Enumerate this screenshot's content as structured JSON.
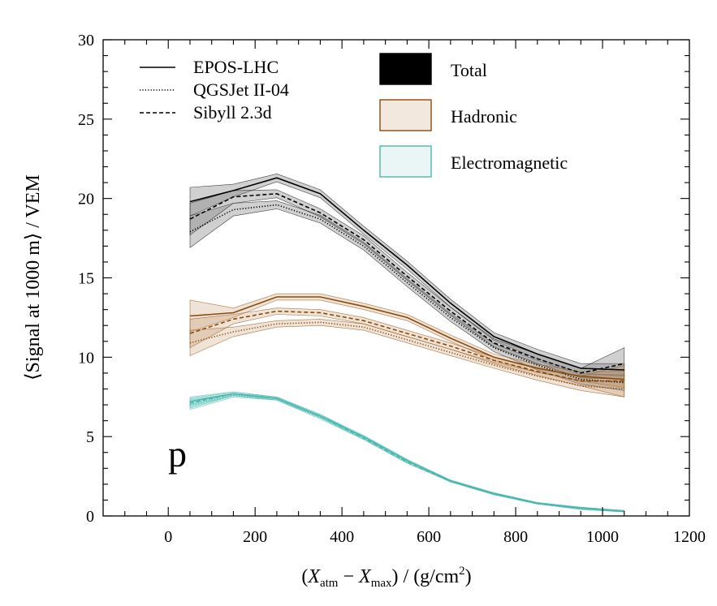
{
  "chart_data": {
    "type": "line",
    "panel_label": "p",
    "xlabel": {
      "prefix": "(",
      "x1": "X",
      "sub1": "atm",
      "minus": " − ",
      "x2": "X",
      "sub2": "max",
      "suffix": ") / (g/cm",
      "sup": "2",
      "end": ")"
    },
    "ylabel": "⟨Signal at 1000 m⟩ / VEM",
    "xlim": [
      -150,
      1200
    ],
    "ylim": [
      0,
      30
    ],
    "xticks": [
      0,
      200,
      400,
      600,
      800,
      1000,
      1200
    ],
    "yticks": [
      0,
      5,
      10,
      15,
      20,
      25,
      30
    ],
    "grid": false,
    "x": [
      50,
      150,
      250,
      350,
      450,
      550,
      650,
      750,
      850,
      950,
      1050
    ],
    "colors": {
      "Total": "#000000",
      "Hadronic": "#8a4b08",
      "Electromagnetic": "#4bb8b0",
      "hadronic_fill": "#c08a5a",
      "em_fill": "#8fd3cc",
      "total_fill": "#777777"
    },
    "model_legend": [
      {
        "label": "EPOS-LHC",
        "style": "solid"
      },
      {
        "label": "QGSJet II-04",
        "style": "dotted"
      },
      {
        "label": "Sibyll 2.3d",
        "style": "dashed"
      }
    ],
    "component_legend": [
      "Total",
      "Hadronic",
      "Electromagnetic"
    ],
    "series": [
      {
        "component": "Total",
        "model": "EPOS-LHC",
        "values": [
          19.8,
          20.5,
          21.3,
          20.3,
          18.0,
          15.8,
          13.4,
          11.3,
          10.2,
          9.3,
          9.2
        ],
        "band": [
          0.9,
          0.4,
          0.25,
          0.25,
          0.25,
          0.25,
          0.25,
          0.25,
          0.3,
          0.3,
          0.4
        ]
      },
      {
        "component": "Total",
        "model": "QGSJet II-04",
        "values": [
          17.9,
          19.3,
          19.6,
          18.7,
          17.0,
          14.7,
          12.5,
          10.6,
          9.5,
          8.6,
          8.4
        ],
        "band": [
          1.0,
          0.4,
          0.25,
          0.25,
          0.25,
          0.25,
          0.25,
          0.25,
          0.3,
          0.3,
          0.5
        ]
      },
      {
        "component": "Total",
        "model": "Sibyll 2.3d",
        "values": [
          18.7,
          20.1,
          20.3,
          19.1,
          17.4,
          15.1,
          12.9,
          10.9,
          9.9,
          9.0,
          9.6
        ],
        "band": [
          1.0,
          0.4,
          0.25,
          0.25,
          0.25,
          0.25,
          0.25,
          0.25,
          0.3,
          0.3,
          1.0
        ]
      },
      {
        "component": "Hadronic",
        "model": "EPOS-LHC",
        "values": [
          12.6,
          12.8,
          13.8,
          13.8,
          13.2,
          12.5,
          11.2,
          10.0,
          9.3,
          8.8,
          8.6
        ],
        "band": [
          1.0,
          0.3,
          0.2,
          0.2,
          0.2,
          0.2,
          0.2,
          0.2,
          0.25,
          0.3,
          0.5
        ]
      },
      {
        "component": "Hadronic",
        "model": "QGSJet II-04",
        "values": [
          10.9,
          11.6,
          12.1,
          12.2,
          11.9,
          11.1,
          10.3,
          9.5,
          8.8,
          8.2,
          8.0
        ],
        "band": [
          0.8,
          0.3,
          0.2,
          0.2,
          0.2,
          0.2,
          0.2,
          0.2,
          0.25,
          0.3,
          0.5
        ]
      },
      {
        "component": "Hadronic",
        "model": "Sibyll 2.3d",
        "values": [
          11.5,
          12.4,
          12.9,
          12.8,
          12.3,
          11.5,
          10.7,
          9.8,
          9.1,
          8.5,
          8.5
        ],
        "band": [
          0.9,
          0.3,
          0.2,
          0.2,
          0.2,
          0.2,
          0.2,
          0.2,
          0.25,
          0.3,
          1.0
        ]
      },
      {
        "component": "Electromagnetic",
        "model": "EPOS-LHC",
        "values": [
          7.2,
          7.7,
          7.4,
          6.3,
          5.0,
          3.5,
          2.2,
          1.4,
          0.8,
          0.5,
          0.3
        ],
        "band": [
          0.3,
          0.12,
          0.1,
          0.1,
          0.08,
          0.08,
          0.06,
          0.06,
          0.05,
          0.05,
          0.05
        ]
      },
      {
        "component": "Electromagnetic",
        "model": "QGSJet II-04",
        "values": [
          7.0,
          7.6,
          7.4,
          6.2,
          4.9,
          3.4,
          2.2,
          1.4,
          0.8,
          0.45,
          0.3
        ],
        "band": [
          0.3,
          0.12,
          0.1,
          0.1,
          0.08,
          0.08,
          0.06,
          0.06,
          0.05,
          0.05,
          0.05
        ]
      },
      {
        "component": "Electromagnetic",
        "model": "Sibyll 2.3d",
        "values": [
          7.1,
          7.7,
          7.4,
          6.3,
          4.9,
          3.4,
          2.2,
          1.4,
          0.8,
          0.5,
          0.3
        ],
        "band": [
          0.3,
          0.12,
          0.1,
          0.1,
          0.08,
          0.08,
          0.06,
          0.06,
          0.05,
          0.05,
          0.05
        ]
      }
    ]
  }
}
